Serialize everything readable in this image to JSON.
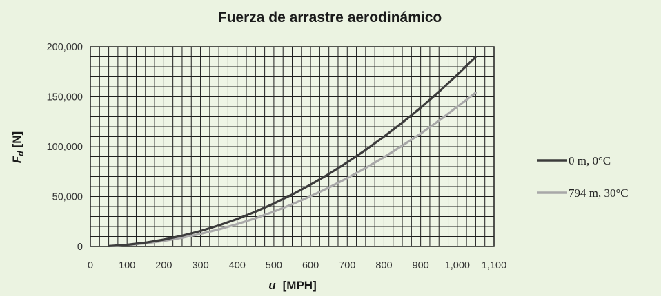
{
  "chart_data": {
    "type": "line",
    "title": "Fuerza de arrastre aerodinámico",
    "ylabel": "F",
    "ylabel_sub": "d",
    "ylabel_unit": "[N]",
    "xlabel": "u",
    "xlabel_unit": "[MPH]",
    "xlim": [
      0,
      1100
    ],
    "ylim": [
      0,
      200000
    ],
    "x_ticks": [
      0,
      100,
      200,
      300,
      400,
      500,
      600,
      700,
      800,
      900,
      1000,
      1100
    ],
    "x_tick_labels": [
      "0",
      "100",
      "200",
      "300",
      "400",
      "500",
      "600",
      "700",
      "800",
      "900",
      "1,000",
      "1,100"
    ],
    "y_ticks": [
      0,
      50000,
      100000,
      150000,
      200000
    ],
    "y_tick_labels": [
      "0",
      "50,000",
      "100,000",
      "150,000",
      "200,000"
    ],
    "grid": true,
    "legend_position": "right",
    "x": [
      50,
      100,
      150,
      200,
      250,
      300,
      350,
      400,
      450,
      500,
      550,
      600,
      650,
      700,
      750,
      800,
      850,
      900,
      950,
      1000,
      1050
    ],
    "series": [
      {
        "name": "0 m, 0°C",
        "color": "#3c3c3c",
        "values": [
          430,
          1720,
          3870,
          6880,
          10800,
          15500,
          21100,
          27500,
          34800,
          43000,
          52000,
          61900,
          72600,
          84300,
          96700,
          110000,
          124000,
          139000,
          155000,
          172000,
          190000
        ]
      },
      {
        "name": "794 m, 30°C",
        "color": "#a8a8a8",
        "values": [
          350,
          1400,
          3150,
          5590,
          8740,
          12600,
          17100,
          22400,
          28300,
          34900,
          42300,
          50300,
          59000,
          68500,
          78600,
          89400,
          101000,
          113000,
          126000,
          140000,
          154000
        ]
      }
    ]
  }
}
